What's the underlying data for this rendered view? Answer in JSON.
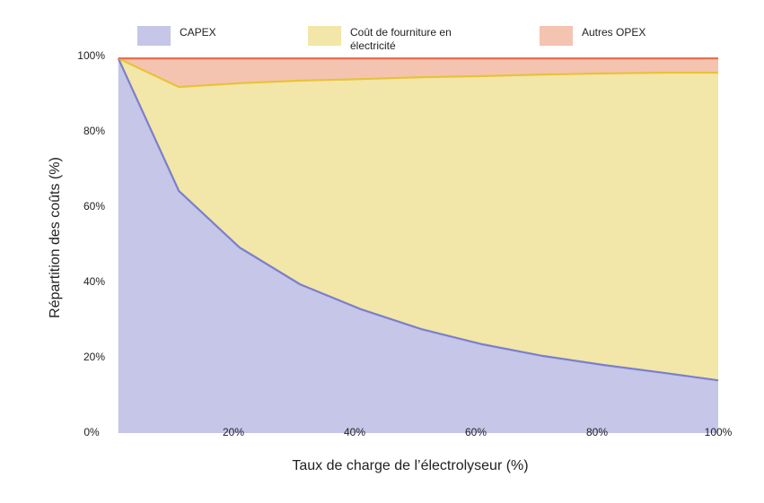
{
  "chart_data": {
    "type": "stacked-area",
    "x_label": "Taux de charge de l’électrolyseur (%)",
    "y_label": "Répartition des coûts (%)",
    "x": [
      1,
      11,
      21,
      31,
      41,
      51,
      61,
      71,
      81,
      91,
      100
    ],
    "series": [
      {
        "name": "CAPEX",
        "color": "#c5c6e8",
        "line_color": "#7b7fcc",
        "values": [
          99.5,
          64.3,
          49.3,
          39.5,
          32.9,
          27.6,
          23.6,
          20.5,
          18.1,
          16.0,
          14.0
        ]
      },
      {
        "name": "Coût de fourniture en électricité",
        "color": "#f2e6a8",
        "line_color": "#e8c23a",
        "values": [
          0,
          27.6,
          43.6,
          54.1,
          61.1,
          66.9,
          71.2,
          74.7,
          77.4,
          79.7,
          81.7
        ]
      },
      {
        "name": "Autres OPEX",
        "color": "#f5c4b0",
        "line_color": "#e8704a",
        "values": [
          0,
          7.6,
          6.6,
          5.9,
          5.5,
          5.0,
          4.7,
          4.3,
          4.0,
          3.8,
          3.8
        ]
      }
    ],
    "xlim": [
      0,
      100
    ],
    "ylim": [
      0,
      100
    ],
    "xticks": [
      {
        "value": 0,
        "label": "0%"
      },
      {
        "value": 20,
        "label": "20%"
      },
      {
        "value": 40,
        "label": "40%"
      },
      {
        "value": 60,
        "label": "60%"
      },
      {
        "value": 80,
        "label": "80%"
      },
      {
        "value": 100,
        "label": "100%"
      }
    ],
    "yticks": [
      {
        "value": 20,
        "label": "20%"
      },
      {
        "value": 40,
        "label": "40%"
      },
      {
        "value": 60,
        "label": "60%"
      },
      {
        "value": 80,
        "label": "80%"
      },
      {
        "value": 100,
        "label": "100%"
      }
    ],
    "grid": false
  }
}
